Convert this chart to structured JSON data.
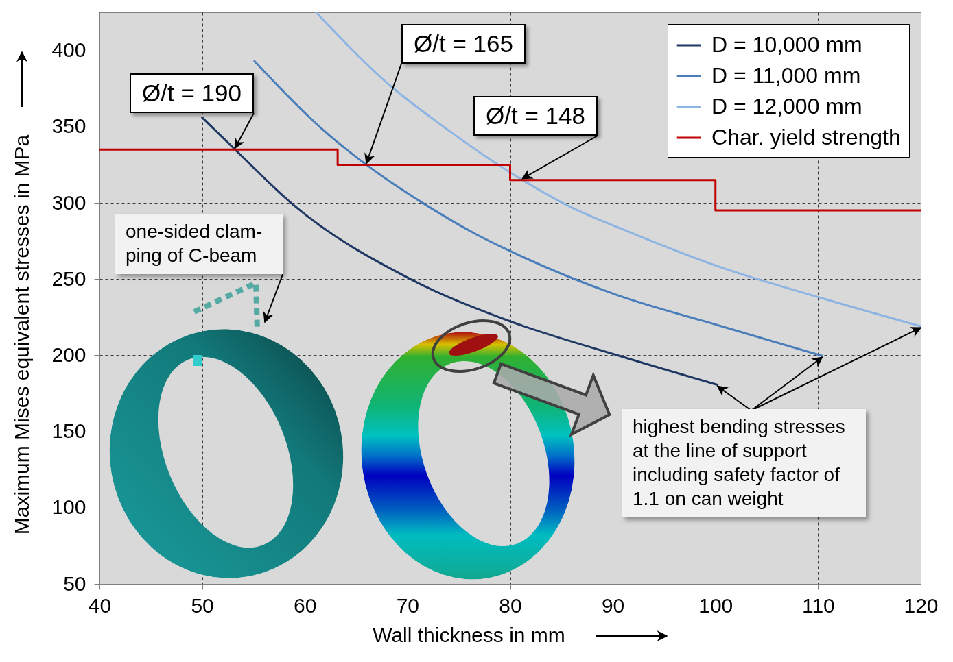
{
  "chart_data": {
    "type": "line",
    "xlabel": "Wall thickness in mm",
    "ylabel": "Maximum Mises equivalent stresses in MPa",
    "xlim": [
      40,
      120
    ],
    "ylim": [
      50,
      425
    ],
    "xticks": [
      40,
      50,
      60,
      70,
      80,
      90,
      100,
      110,
      120
    ],
    "yticks": [
      50,
      100,
      150,
      200,
      250,
      300,
      350,
      400
    ],
    "grid": true,
    "legend": "top right",
    "series": [
      {
        "name": "D = 10,000 mm",
        "color": "#1f3864",
        "x": [
          50,
          53.2,
          58.9,
          70.4,
          79.7,
          90.2,
          100.2
        ],
        "values": [
          356,
          335,
          298.6,
          249.6,
          223,
          200.5,
          180.6
        ]
      },
      {
        "name": "D = 11,000 mm",
        "color": "#4a7ebb",
        "x": [
          55.1,
          61.6,
          66,
          71.8,
          76.8,
          79.8,
          90.2,
          100.4,
          110.4
        ],
        "values": [
          393,
          349,
          325,
          298.6,
          279,
          269,
          240,
          219.4,
          199.6
        ]
      },
      {
        "name": "D = 12,000 mm",
        "color": "#8db4e2",
        "x": [
          61.1,
          68.3,
          73.1,
          81.2,
          85.5,
          91.7,
          100.4,
          110.4,
          120
        ],
        "values": [
          425,
          377,
          352,
          315,
          298.6,
          280.6,
          258,
          237.4,
          219
        ]
      },
      {
        "name": "Char. yield strength",
        "type": "step",
        "color": "#c00000",
        "x": [
          40,
          63.2,
          80,
          100,
          120
        ],
        "values": [
          335,
          325,
          315,
          295,
          295
        ]
      }
    ],
    "annotations": [
      {
        "text": "Ø/t = 190",
        "x": 53.2,
        "y": 335
      },
      {
        "text": "Ø/t = 165",
        "x": 66,
        "y": 325
      },
      {
        "text": "Ø/t = 148",
        "x": 81.2,
        "y": 315
      },
      "one-sided clam-\nping of C-beam",
      {
        "text": "highest bending stresses\nat the line of support\nincluding safety factor of\n1.1 on can weight",
        "x": 100.2,
        "y": 180.6
      }
    ]
  }
}
